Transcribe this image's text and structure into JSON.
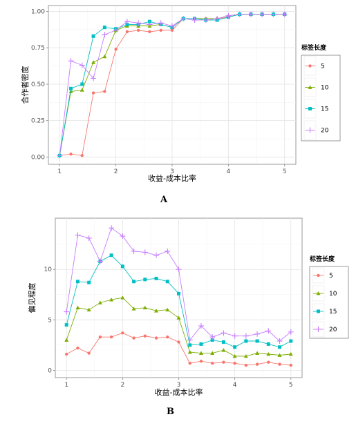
{
  "chart_data": [
    {
      "type": "line",
      "panel_label": "A",
      "xlabel": "收益-成本比率",
      "ylabel": "合作者密度",
      "xlim": [
        1,
        5
      ],
      "ylim": [
        0,
        1
      ],
      "x_ticks": [
        1,
        2,
        3,
        4,
        5
      ],
      "y_ticks": [
        0.0,
        0.25,
        0.5,
        0.75,
        1.0
      ],
      "y_tick_labels": [
        "0.00",
        "0.25",
        "0.50",
        "0.75",
        "1.00"
      ],
      "grid": true,
      "legend_title": "标签长度",
      "legend_position": "right",
      "x": [
        1.0,
        1.2,
        1.4,
        1.6,
        1.8,
        2.0,
        2.2,
        2.4,
        2.6,
        2.8,
        3.0,
        3.2,
        3.4,
        3.6,
        3.8,
        4.0,
        4.2,
        4.4,
        4.6,
        4.8,
        5.0
      ],
      "series": [
        {
          "name": "5",
          "color": "#F8766D",
          "marker": "circle",
          "values": [
            0.01,
            0.02,
            0.01,
            0.44,
            0.45,
            0.74,
            0.86,
            0.87,
            0.86,
            0.87,
            0.87,
            0.95,
            0.95,
            0.95,
            0.95,
            0.96,
            0.98,
            0.98,
            0.98,
            0.98,
            0.98
          ]
        },
        {
          "name": "10",
          "color": "#7CAE00",
          "marker": "triangle",
          "values": [
            0.01,
            0.45,
            0.46,
            0.65,
            0.69,
            0.87,
            0.9,
            0.9,
            0.9,
            0.91,
            0.89,
            0.95,
            0.95,
            0.95,
            0.95,
            0.97,
            0.98,
            0.98,
            0.98,
            0.98,
            0.98
          ]
        },
        {
          "name": "15",
          "color": "#00BFC4",
          "marker": "square",
          "values": [
            0.01,
            0.47,
            0.5,
            0.83,
            0.89,
            0.88,
            0.91,
            0.91,
            0.93,
            0.91,
            0.89,
            0.95,
            0.95,
            0.94,
            0.94,
            0.96,
            0.98,
            0.98,
            0.98,
            0.98,
            0.98
          ]
        },
        {
          "name": "20",
          "color": "#C77CFF",
          "marker": "plus",
          "values": [
            0.01,
            0.66,
            0.63,
            0.54,
            0.84,
            0.87,
            0.93,
            0.92,
            0.91,
            0.92,
            0.9,
            0.95,
            0.94,
            0.94,
            0.95,
            0.97,
            0.98,
            0.98,
            0.98,
            0.98,
            0.98
          ]
        }
      ]
    },
    {
      "type": "line",
      "panel_label": "B",
      "xlabel": "收益-成本比率",
      "ylabel": "偏见程度",
      "xlim": [
        1,
        5
      ],
      "ylim": [
        0,
        14.5
      ],
      "x_ticks": [
        1,
        2,
        3,
        4,
        5
      ],
      "y_ticks": [
        0,
        5,
        10
      ],
      "y_tick_labels": [
        "0",
        "5",
        "10"
      ],
      "grid": true,
      "legend_title": "标签长度",
      "legend_position": "right",
      "x": [
        1.0,
        1.2,
        1.4,
        1.6,
        1.8,
        2.0,
        2.2,
        2.4,
        2.6,
        2.8,
        3.0,
        3.2,
        3.4,
        3.6,
        3.8,
        4.0,
        4.2,
        4.4,
        4.6,
        4.8,
        5.0
      ],
      "series": [
        {
          "name": "5",
          "color": "#F8766D",
          "marker": "circle",
          "values": [
            1.6,
            2.2,
            1.7,
            3.3,
            3.3,
            3.7,
            3.2,
            3.4,
            3.2,
            3.3,
            2.8,
            0.7,
            0.9,
            0.7,
            0.8,
            0.7,
            0.5,
            0.6,
            0.8,
            0.6,
            0.5
          ]
        },
        {
          "name": "10",
          "color": "#7CAE00",
          "marker": "triangle",
          "values": [
            3.0,
            6.2,
            6.0,
            6.7,
            7.0,
            7.2,
            6.1,
            6.2,
            5.9,
            6.0,
            5.2,
            1.8,
            1.7,
            1.7,
            2.0,
            1.4,
            1.4,
            1.7,
            1.6,
            1.5,
            1.6
          ]
        },
        {
          "name": "15",
          "color": "#00BFC4",
          "marker": "square",
          "values": [
            4.5,
            8.8,
            8.7,
            10.8,
            11.4,
            10.3,
            8.8,
            9.0,
            9.1,
            8.8,
            7.6,
            2.5,
            2.6,
            3.0,
            2.8,
            2.3,
            2.9,
            2.9,
            2.6,
            2.3,
            2.9
          ]
        },
        {
          "name": "20",
          "color": "#C77CFF",
          "marker": "plus",
          "values": [
            5.8,
            13.4,
            13.1,
            10.8,
            14.1,
            13.3,
            11.8,
            11.7,
            11.4,
            11.8,
            10.0,
            3.0,
            4.4,
            3.3,
            3.7,
            3.4,
            3.4,
            3.6,
            3.9,
            2.9,
            3.8
          ]
        }
      ]
    }
  ]
}
